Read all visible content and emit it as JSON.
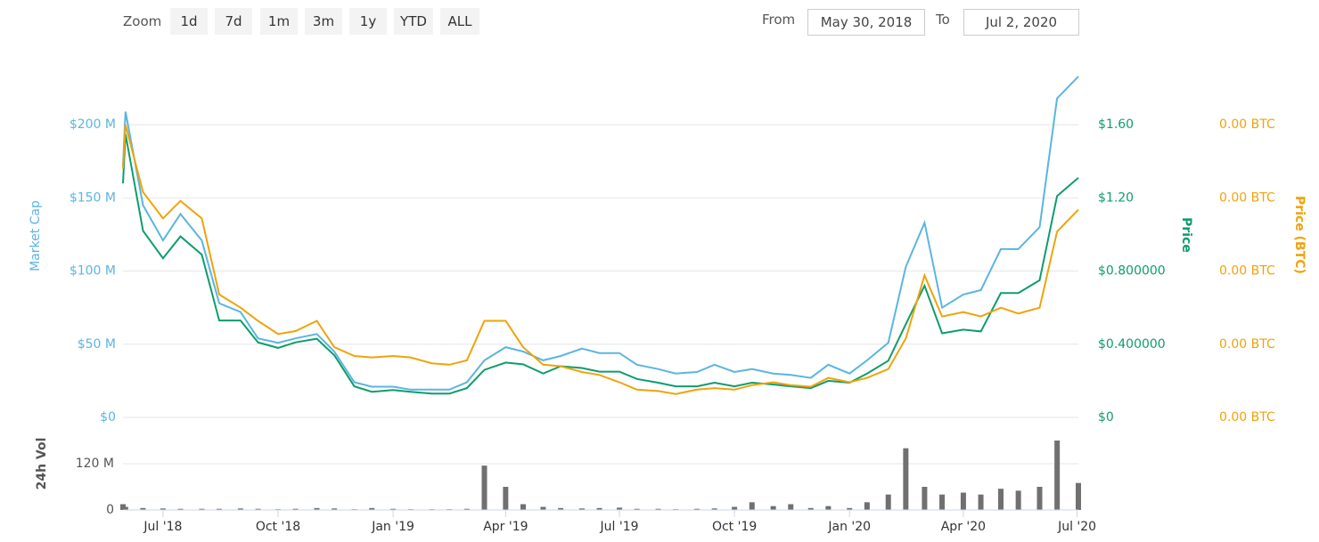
{
  "toolbar": {
    "zoom_label": "Zoom",
    "buttons": [
      "1d",
      "7d",
      "1m",
      "3m",
      "1y",
      "YTD",
      "ALL"
    ],
    "from_label": "From",
    "from": "May 30, 2018",
    "to_label": "To",
    "to": "Jul 2, 2020"
  },
  "chart_data": [
    {
      "type": "line",
      "x": [
        "2018-05-30",
        "2018-06-01",
        "2018-06-15",
        "2018-07-01",
        "2018-07-15",
        "2018-08-01",
        "2018-08-15",
        "2018-09-01",
        "2018-09-15",
        "2018-10-01",
        "2018-10-15",
        "2018-11-01",
        "2018-11-15",
        "2018-12-01",
        "2018-12-15",
        "2019-01-01",
        "2019-01-15",
        "2019-02-01",
        "2019-02-15",
        "2019-03-01",
        "2019-03-15",
        "2019-04-01",
        "2019-04-15",
        "2019-05-01",
        "2019-05-15",
        "2019-06-01",
        "2019-06-15",
        "2019-07-01",
        "2019-07-15",
        "2019-08-01",
        "2019-08-15",
        "2019-09-01",
        "2019-09-15",
        "2019-10-01",
        "2019-10-15",
        "2019-11-01",
        "2019-11-15",
        "2019-12-01",
        "2019-12-15",
        "2020-01-01",
        "2020-01-15",
        "2020-02-01",
        "2020-02-15",
        "2020-03-01",
        "2020-03-15",
        "2020-04-01",
        "2020-04-15",
        "2020-05-01",
        "2020-05-15",
        "2020-06-01",
        "2020-06-15",
        "2020-07-02"
      ],
      "xlim": [
        "2018-05-30",
        "2020-07-02"
      ],
      "series": [
        {
          "name": "Market Cap",
          "color": "#5bb5e0",
          "axis": "y",
          "values": [
            172,
            209,
            145,
            121,
            139,
            121,
            78,
            72,
            54,
            51,
            54,
            57,
            45,
            24,
            21,
            21,
            19,
            19,
            19,
            24,
            39,
            48,
            45,
            39,
            42,
            47,
            44,
            44,
            36,
            33,
            30,
            31,
            36,
            31,
            33,
            30,
            29,
            27,
            36,
            30,
            39,
            51,
            103,
            133,
            75,
            84,
            87,
            115,
            115,
            130,
            218,
            233
          ]
        },
        {
          "name": "Price",
          "color": "#0e9d6c",
          "axis": "y2",
          "values": [
            1.28,
            1.55,
            1.02,
            0.87,
            0.99,
            0.89,
            0.53,
            0.53,
            0.41,
            0.38,
            0.41,
            0.43,
            0.34,
            0.17,
            0.14,
            0.15,
            0.14,
            0.13,
            0.13,
            0.16,
            0.26,
            0.3,
            0.29,
            0.24,
            0.28,
            0.27,
            0.25,
            0.25,
            0.21,
            0.19,
            0.17,
            0.17,
            0.19,
            0.17,
            0.19,
            0.18,
            0.17,
            0.16,
            0.2,
            0.19,
            0.24,
            0.31,
            0.51,
            0.72,
            0.46,
            0.48,
            0.47,
            0.68,
            0.68,
            0.75,
            1.21,
            1.31
          ]
        },
        {
          "name": "Price (BTC)",
          "color": "#f0a30a",
          "axis": "y3",
          "values": [
            0.00017,
            0.0002,
            0.000154,
            0.000136,
            0.000148,
            0.000136,
            8.4e-05,
            7.5e-05,
            6.6e-05,
            5.7e-05,
            5.9e-05,
            6.6e-05,
            4.8e-05,
            4.2e-05,
            4.1e-05,
            4.2e-05,
            4.1e-05,
            3.7e-05,
            3.6e-05,
            3.9e-05,
            6.6e-05,
            6.6e-05,
            4.8e-05,
            3.6e-05,
            3.5e-05,
            3.1e-05,
            2.9e-05,
            2.4e-05,
            1.9e-05,
            1.8e-05,
            1.6e-05,
            1.9e-05,
            2e-05,
            1.9e-05,
            2.2e-05,
            2.4e-05,
            2.2e-05,
            2.1e-05,
            2.7e-05,
            2.4e-05,
            2.7e-05,
            3.3e-05,
            5.4e-05,
            9.7e-05,
            6.9e-05,
            7.2e-05,
            6.9e-05,
            7.5e-05,
            7.1e-05,
            7.5e-05,
            0.000127,
            0.000142
          ]
        }
      ],
      "ylim": [
        0,
        250
      ],
      "yticks": [
        {
          "value": 0,
          "label": "$0"
        },
        {
          "value": 50,
          "label": "$50 M"
        },
        {
          "value": 100,
          "label": "$100 M"
        },
        {
          "value": 150,
          "label": "$150 M"
        },
        {
          "value": 200,
          "label": "$200 M"
        }
      ],
      "y2lim": [
        0,
        2.0
      ],
      "y2ticks": [
        {
          "value": 0,
          "label": "$0"
        },
        {
          "value": 0.4,
          "label": "$0.400000"
        },
        {
          "value": 0.8,
          "label": "$0.800000"
        },
        {
          "value": 1.2,
          "label": "$1.20"
        },
        {
          "value": 1.6,
          "label": "$1.60"
        }
      ],
      "y3lim": [
        0,
        0.00025
      ],
      "y3ticks": [
        {
          "value": 0,
          "label": "0.00 BTC"
        },
        {
          "value": 5e-05,
          "label": "0.00 BTC"
        },
        {
          "value": 0.0001,
          "label": "0.00 BTC"
        },
        {
          "value": 0.00015,
          "label": "0.00 BTC"
        },
        {
          "value": 0.0002,
          "label": "0.00 BTC"
        }
      ],
      "grid": true
    },
    {
      "type": "bar",
      "y_label": "24h Vol",
      "color": "#707070",
      "x": [
        "2018-05-30",
        "2018-06-01",
        "2018-06-15",
        "2018-07-01",
        "2018-07-15",
        "2018-08-01",
        "2018-08-15",
        "2018-09-01",
        "2018-09-15",
        "2018-10-01",
        "2018-10-15",
        "2018-11-01",
        "2018-11-15",
        "2018-12-01",
        "2018-12-15",
        "2019-01-01",
        "2019-01-15",
        "2019-02-01",
        "2019-02-15",
        "2019-03-01",
        "2019-03-15",
        "2019-04-01",
        "2019-04-15",
        "2019-05-01",
        "2019-05-15",
        "2019-06-01",
        "2019-06-15",
        "2019-07-01",
        "2019-07-15",
        "2019-08-01",
        "2019-08-15",
        "2019-09-01",
        "2019-09-15",
        "2019-10-01",
        "2019-10-15",
        "2019-11-01",
        "2019-11-15",
        "2019-12-01",
        "2019-12-15",
        "2020-01-01",
        "2020-01-15",
        "2020-02-01",
        "2020-02-15",
        "2020-03-01",
        "2020-03-15",
        "2020-04-01",
        "2020-04-15",
        "2020-05-01",
        "2020-05-15",
        "2020-06-01",
        "2020-06-15",
        "2020-07-02"
      ],
      "values": [
        15,
        8,
        5,
        4,
        3,
        3,
        3,
        4,
        3,
        2,
        3,
        5,
        4,
        2,
        5,
        3,
        2,
        2,
        2,
        3,
        115,
        60,
        15,
        8,
        5,
        4,
        5,
        6,
        3,
        3,
        2,
        3,
        4,
        8,
        20,
        10,
        15,
        5,
        10,
        5,
        20,
        40,
        160,
        60,
        40,
        45,
        40,
        55,
        50,
        60,
        180,
        70
      ],
      "xlim": [
        "2018-05-30",
        "2020-07-02"
      ],
      "xticks": [
        {
          "value": "2018-07-01",
          "label": "Jul '18"
        },
        {
          "value": "2018-10-01",
          "label": "Oct '18"
        },
        {
          "value": "2019-01-01",
          "label": "Jan '19"
        },
        {
          "value": "2019-04-01",
          "label": "Apr '19"
        },
        {
          "value": "2019-07-01",
          "label": "Jul '19"
        },
        {
          "value": "2019-10-01",
          "label": "Oct '19"
        },
        {
          "value": "2020-01-01",
          "label": "Jan '20"
        },
        {
          "value": "2020-04-01",
          "label": "Apr '20"
        },
        {
          "value": "2020-07-01",
          "label": "Jul '20"
        }
      ],
      "ylim": [
        0,
        240
      ],
      "yticks": [
        0,
        {
          "value": 120,
          "label": "120 M"
        }
      ],
      "grid": true
    }
  ]
}
